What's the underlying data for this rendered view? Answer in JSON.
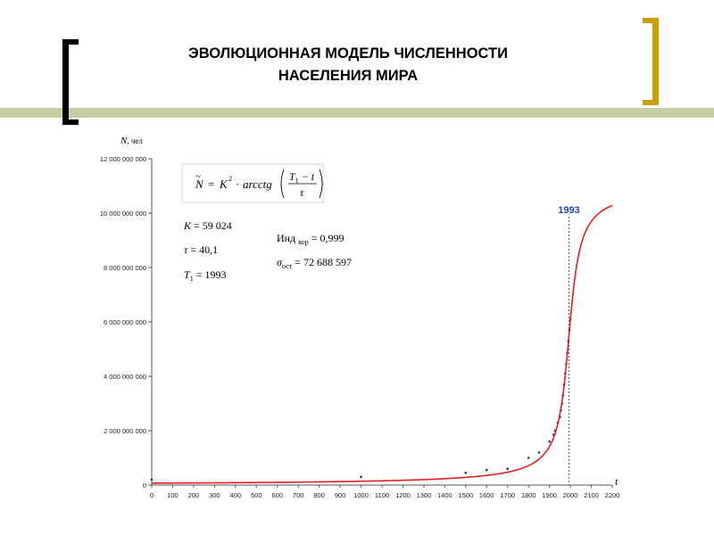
{
  "slide": {
    "title_line1": "ЭВОЛЮЦИОННАЯ МОДЕЛЬ ЧИСЛЕННОСТИ",
    "title_line2": "НАСЕЛЕНИЯ МИРА",
    "accent_color": "#c9cda2",
    "left_bracket_color": "#000000",
    "right_bracket_color": "#c9a000"
  },
  "formula": {
    "lhs": "N",
    "equals": "=",
    "k_symbol": "K",
    "k_exp": "2",
    "dot": "·",
    "func": "arcctg",
    "num_t": "T",
    "num_sub": "1",
    "num_rest": " − t",
    "den": "τ"
  },
  "params": {
    "k_label": "K",
    "k_rest": " = 59 024",
    "tau_label": "τ",
    "tau_rest": " = 40,1",
    "t1_label": "T",
    "t1_sub": "1",
    "t1_rest": " = 1993",
    "ind_label": "Инд",
    "ind_sub": "кор",
    "ind_rest": " = 0,999",
    "sigma_label": "σ",
    "sigma_sub": "ост",
    "sigma_rest": " = 72 688 597"
  },
  "chart_data": {
    "type": "line",
    "title": "",
    "ylabel_var": "N",
    "ylabel_unit": ", чел",
    "xlabel": "t",
    "xlim": [
      0,
      2200
    ],
    "ylim": [
      0,
      12000000000
    ],
    "x_ticks": [
      0,
      100,
      200,
      300,
      400,
      500,
      600,
      700,
      800,
      900,
      1000,
      1100,
      1200,
      1300,
      1400,
      1500,
      1600,
      1700,
      1800,
      1900,
      2000,
      2100,
      2200
    ],
    "y_ticks": [
      {
        "value": 0,
        "label": "0"
      },
      {
        "value": 2000000000,
        "label": "2 000 000 000"
      },
      {
        "value": 4000000000,
        "label": "4 000 000 000"
      },
      {
        "value": 6000000000,
        "label": "6 000 000 000"
      },
      {
        "value": 8000000000,
        "label": "8 000 000 000"
      },
      {
        "value": 10000000000,
        "label": "10 000 000 000"
      },
      {
        "value": 12000000000,
        "label": "12 000 000 000"
      }
    ],
    "grid": false,
    "model": {
      "K": 59024,
      "tau": 40.1,
      "T1": 1993
    },
    "curve_color": "#e02020",
    "vline": {
      "x": 1993,
      "label": "1993",
      "color": "#2244bb"
    },
    "series": [
      {
        "x": [
          0,
          1000,
          1500,
          1600,
          1700,
          1800,
          1850,
          1900,
          1920,
          1927,
          1940,
          1950,
          1955,
          1960,
          1965,
          1970,
          1975,
          1980,
          1985,
          1990,
          1995,
          2000
        ],
        "y": [
          200000000,
          300000000,
          450000000,
          550000000,
          600000000,
          1000000000,
          1200000000,
          1600000000,
          1850000000,
          2000000000,
          2300000000,
          2500000000,
          2750000000,
          3000000000,
          3300000000,
          3700000000,
          4100000000,
          4450000000,
          4850000000,
          5300000000,
          5700000000,
          6100000000
        ]
      }
    ]
  }
}
